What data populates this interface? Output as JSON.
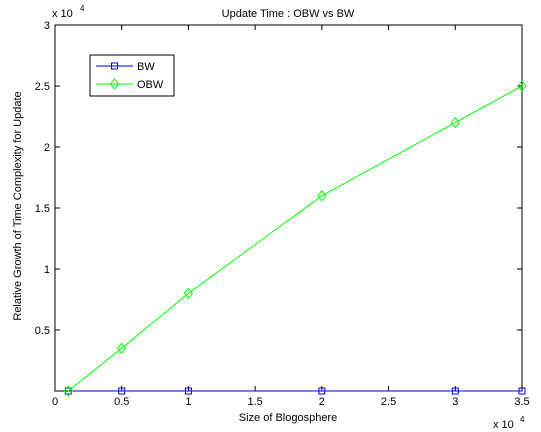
{
  "chart_data": {
    "type": "line",
    "title": "Update Time : OBW vs BW",
    "xlabel": "Size of Blogosphere",
    "ylabel": "Relative Growth of Time Complexity for Update",
    "x_multiplier": "x 10",
    "x_multiplier_exp": "4",
    "y_multiplier": "x 10",
    "y_multiplier_exp": "4",
    "xlim": [
      0,
      35000
    ],
    "ylim": [
      0,
      30000
    ],
    "x_ticks": [
      0,
      5000,
      10000,
      15000,
      20000,
      25000,
      30000,
      35000
    ],
    "x_tick_labels": [
      "0",
      "0.5",
      "1",
      "1.5",
      "2",
      "2.5",
      "3",
      "3.5"
    ],
    "y_ticks": [
      0,
      5000,
      10000,
      15000,
      20000,
      25000,
      30000
    ],
    "y_tick_labels": [
      "",
      "0.5",
      "1",
      "1.5",
      "2",
      "2.5",
      "3"
    ],
    "grid": false,
    "legend_position": "top-left",
    "series": [
      {
        "name": "BW",
        "color": "#0000ff",
        "marker": "square",
        "x": [
          1000,
          5000,
          10000,
          20000,
          30000,
          35000
        ],
        "y": [
          0,
          0,
          0,
          0,
          0,
          0
        ]
      },
      {
        "name": "OBW",
        "color": "#00ff00",
        "marker": "diamond",
        "x": [
          1000,
          5000,
          10000,
          20000,
          30000,
          35000
        ],
        "y": [
          0,
          3500,
          8000,
          16000,
          22000,
          25000
        ]
      }
    ]
  }
}
